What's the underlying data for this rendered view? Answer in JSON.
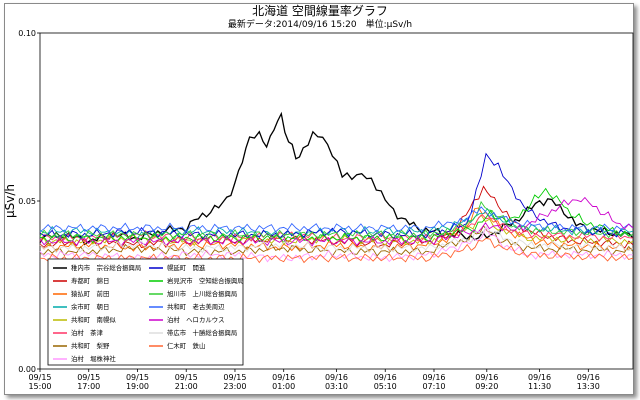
{
  "chart_data": {
    "type": "line",
    "title": "北海道 空間線量率グラフ",
    "subtitle": "最新データ:2014/09/16 15:20　単位:μSv/h",
    "ylabel": "μSv/h",
    "ylim": [
      0.0,
      0.1
    ],
    "yticks": [
      "0.00",
      "0.05",
      "0.10"
    ],
    "xticks": [
      {
        "date": "09/15",
        "time": "15:00"
      },
      {
        "date": "09/15",
        "time": "17:00"
      },
      {
        "date": "09/15",
        "time": "19:00"
      },
      {
        "date": "09/15",
        "time": "21:00"
      },
      {
        "date": "09/15",
        "time": "23:00"
      },
      {
        "date": "09/16",
        "time": "01:00"
      },
      {
        "date": "09/16",
        "time": "03:10"
      },
      {
        "date": "09/16",
        "time": "05:10"
      },
      {
        "date": "09/16",
        "time": "07:10"
      },
      {
        "date": "09/16",
        "time": "09:20"
      },
      {
        "date": "09/16",
        "time": "11:30"
      },
      {
        "date": "09/16",
        "time": "13:30"
      }
    ],
    "x_range": [
      "09/15 15:00",
      "09/16 15:20"
    ],
    "grid": false,
    "legend_position": "lower-left",
    "series": [
      {
        "name": "稚内市　宗谷総合振興局",
        "color": "#000000",
        "points": [
          [
            15,
            0.039
          ],
          [
            16,
            0.04
          ],
          [
            17,
            0.038
          ],
          [
            18,
            0.04
          ],
          [
            19,
            0.039
          ],
          [
            20,
            0.041
          ],
          [
            21,
            0.042
          ],
          [
            21.5,
            0.045
          ],
          [
            22,
            0.047
          ],
          [
            22.5,
            0.049
          ],
          [
            23,
            0.055
          ],
          [
            23.3,
            0.062
          ],
          [
            23.6,
            0.069
          ],
          [
            24,
            0.07
          ],
          [
            24.3,
            0.066
          ],
          [
            24.6,
            0.072
          ],
          [
            24.9,
            0.075
          ],
          [
            25.2,
            0.068
          ],
          [
            25.5,
            0.063
          ],
          [
            25.8,
            0.065
          ],
          [
            26.2,
            0.07
          ],
          [
            26.6,
            0.069
          ],
          [
            27,
            0.064
          ],
          [
            27.4,
            0.058
          ],
          [
            27.8,
            0.057
          ],
          [
            28.2,
            0.058
          ],
          [
            28.6,
            0.056
          ],
          [
            29,
            0.052
          ],
          [
            29.5,
            0.047
          ],
          [
            30,
            0.044
          ],
          [
            30.5,
            0.042
          ],
          [
            31,
            0.041
          ],
          [
            32,
            0.04
          ],
          [
            33,
            0.039
          ],
          [
            33.5,
            0.04
          ],
          [
            34,
            0.042
          ],
          [
            34.5,
            0.044
          ],
          [
            35,
            0.047
          ],
          [
            35.5,
            0.05
          ],
          [
            36,
            0.05
          ],
          [
            36.5,
            0.047
          ],
          [
            37,
            0.043
          ],
          [
            38,
            0.041
          ],
          [
            39,
            0.04
          ],
          [
            39.33,
            0.039
          ]
        ]
      },
      {
        "name": "寿都町　錦日",
        "color": "#cc0000",
        "points": [
          [
            15,
            0.037
          ],
          [
            17,
            0.038
          ],
          [
            19,
            0.037
          ],
          [
            21,
            0.038
          ],
          [
            23,
            0.038
          ],
          [
            25,
            0.039
          ],
          [
            27,
            0.038
          ],
          [
            29,
            0.037
          ],
          [
            31,
            0.038
          ],
          [
            32,
            0.04
          ],
          [
            32.8,
            0.05
          ],
          [
            33.2,
            0.054
          ],
          [
            33.8,
            0.049
          ],
          [
            34.5,
            0.043
          ],
          [
            35.5,
            0.04
          ],
          [
            37,
            0.038
          ],
          [
            39.33,
            0.037
          ]
        ]
      },
      {
        "name": "猿払町　前田",
        "color": "#ff6600",
        "points": [
          [
            15,
            0.036
          ],
          [
            17,
            0.037
          ],
          [
            19,
            0.036
          ],
          [
            21,
            0.037
          ],
          [
            23,
            0.037
          ],
          [
            25,
            0.036
          ],
          [
            27,
            0.037
          ],
          [
            29,
            0.036
          ],
          [
            31,
            0.037
          ],
          [
            32.2,
            0.04
          ],
          [
            33,
            0.048
          ],
          [
            33.6,
            0.044
          ],
          [
            34.5,
            0.04
          ],
          [
            36,
            0.037
          ],
          [
            39.33,
            0.036
          ]
        ]
      },
      {
        "name": "余市町　朝日",
        "color": "#00aaaa",
        "points": [
          [
            15,
            0.041
          ],
          [
            17,
            0.041
          ],
          [
            19,
            0.04
          ],
          [
            21,
            0.041
          ],
          [
            23,
            0.041
          ],
          [
            25,
            0.04
          ],
          [
            27,
            0.041
          ],
          [
            29,
            0.041
          ],
          [
            31,
            0.041
          ],
          [
            32.5,
            0.044
          ],
          [
            33.2,
            0.047
          ],
          [
            34,
            0.044
          ],
          [
            35,
            0.042
          ],
          [
            37,
            0.041
          ],
          [
            39.33,
            0.041
          ]
        ]
      },
      {
        "name": "共和町　南幌似",
        "color": "#bbbb00",
        "points": [
          [
            15,
            0.038
          ],
          [
            17,
            0.038
          ],
          [
            19,
            0.039
          ],
          [
            21,
            0.038
          ],
          [
            23,
            0.039
          ],
          [
            25,
            0.038
          ],
          [
            27,
            0.039
          ],
          [
            29,
            0.038
          ],
          [
            31,
            0.038
          ],
          [
            32.6,
            0.042
          ],
          [
            33.1,
            0.045
          ],
          [
            33.8,
            0.042
          ],
          [
            35,
            0.039
          ],
          [
            39.33,
            0.038
          ]
        ]
      },
      {
        "name": "泊村　茶津",
        "color": "#ff3366",
        "points": [
          [
            15,
            0.039
          ],
          [
            17,
            0.039
          ],
          [
            19,
            0.04
          ],
          [
            21,
            0.039
          ],
          [
            23,
            0.039
          ],
          [
            25,
            0.04
          ],
          [
            27,
            0.039
          ],
          [
            29,
            0.039
          ],
          [
            31,
            0.039
          ],
          [
            32.7,
            0.043
          ],
          [
            33.3,
            0.046
          ],
          [
            34,
            0.042
          ],
          [
            35,
            0.04
          ],
          [
            39.33,
            0.039
          ]
        ]
      },
      {
        "name": "共和町　梨野",
        "color": "#996600",
        "points": [
          [
            15,
            0.035
          ],
          [
            17,
            0.035
          ],
          [
            19,
            0.036
          ],
          [
            21,
            0.035
          ],
          [
            23,
            0.035
          ],
          [
            25,
            0.036
          ],
          [
            27,
            0.035
          ],
          [
            29,
            0.035
          ],
          [
            31,
            0.035
          ],
          [
            32.6,
            0.039
          ],
          [
            33.2,
            0.042
          ],
          [
            34,
            0.038
          ],
          [
            35,
            0.036
          ],
          [
            39.33,
            0.035
          ]
        ]
      },
      {
        "name": "泊村　堀株神社",
        "color": "#ff99ff",
        "points": [
          [
            15,
            0.034
          ],
          [
            17,
            0.034
          ],
          [
            19,
            0.033
          ],
          [
            21,
            0.034
          ],
          [
            23,
            0.034
          ],
          [
            25,
            0.033
          ],
          [
            27,
            0.034
          ],
          [
            29,
            0.033
          ],
          [
            31,
            0.034
          ],
          [
            32.8,
            0.038
          ],
          [
            33.3,
            0.041
          ],
          [
            34,
            0.037
          ],
          [
            35,
            0.034
          ],
          [
            39.33,
            0.034
          ]
        ]
      },
      {
        "name": "幌延町　開進",
        "color": "#0000cc",
        "points": [
          [
            15,
            0.04
          ],
          [
            17,
            0.04
          ],
          [
            19,
            0.041
          ],
          [
            21,
            0.04
          ],
          [
            23,
            0.04
          ],
          [
            25,
            0.04
          ],
          [
            27,
            0.041
          ],
          [
            29,
            0.04
          ],
          [
            31,
            0.04
          ],
          [
            32.5,
            0.043
          ],
          [
            32.9,
            0.053
          ],
          [
            33.3,
            0.064
          ],
          [
            33.8,
            0.06
          ],
          [
            34.2,
            0.055
          ],
          [
            34.7,
            0.05
          ],
          [
            35.2,
            0.046
          ],
          [
            36,
            0.043
          ],
          [
            37,
            0.041
          ],
          [
            39.33,
            0.04
          ]
        ]
      },
      {
        "name": "岩見沢市　空知総合振興局",
        "color": "#00cc00",
        "points": [
          [
            15,
            0.039
          ],
          [
            17,
            0.039
          ],
          [
            19,
            0.039
          ],
          [
            21,
            0.039
          ],
          [
            23,
            0.039
          ],
          [
            25,
            0.039
          ],
          [
            27,
            0.039
          ],
          [
            29,
            0.039
          ],
          [
            31,
            0.039
          ],
          [
            32.8,
            0.042
          ],
          [
            33.5,
            0.046
          ],
          [
            34.3,
            0.044
          ],
          [
            35,
            0.048
          ],
          [
            35.6,
            0.053
          ],
          [
            36.2,
            0.051
          ],
          [
            36.8,
            0.046
          ],
          [
            37.6,
            0.043
          ],
          [
            38.5,
            0.041
          ],
          [
            39.33,
            0.04
          ]
        ]
      },
      {
        "name": "旭川市　上川総合振興局",
        "color": "#33cc33",
        "points": [
          [
            15,
            0.04
          ],
          [
            17,
            0.04
          ],
          [
            19,
            0.04
          ],
          [
            21,
            0.04
          ],
          [
            23,
            0.04
          ],
          [
            25,
            0.04
          ],
          [
            27,
            0.04
          ],
          [
            29,
            0.04
          ],
          [
            31,
            0.04
          ],
          [
            32.6,
            0.043
          ],
          [
            33.1,
            0.049
          ],
          [
            33.7,
            0.046
          ],
          [
            34.5,
            0.042
          ],
          [
            36,
            0.041
          ],
          [
            39.33,
            0.04
          ]
        ]
      },
      {
        "name": "共和町　老古美周辺",
        "color": "#3366ff",
        "points": [
          [
            15,
            0.042
          ],
          [
            17,
            0.042
          ],
          [
            19,
            0.042
          ],
          [
            21,
            0.042
          ],
          [
            23,
            0.042
          ],
          [
            25,
            0.042
          ],
          [
            27,
            0.042
          ],
          [
            29,
            0.042
          ],
          [
            31,
            0.042
          ],
          [
            32.6,
            0.045
          ],
          [
            33.1,
            0.048
          ],
          [
            33.8,
            0.045
          ],
          [
            35,
            0.043
          ],
          [
            37,
            0.042
          ],
          [
            39.33,
            0.042
          ]
        ]
      },
      {
        "name": "泊村　ヘロカルウス",
        "color": "#cc00cc",
        "points": [
          [
            15,
            0.038
          ],
          [
            17,
            0.038
          ],
          [
            19,
            0.038
          ],
          [
            21,
            0.038
          ],
          [
            23,
            0.038
          ],
          [
            25,
            0.038
          ],
          [
            27,
            0.038
          ],
          [
            29,
            0.038
          ],
          [
            31,
            0.038
          ],
          [
            32.8,
            0.041
          ],
          [
            33.6,
            0.043
          ],
          [
            34.5,
            0.041
          ],
          [
            35.5,
            0.045
          ],
          [
            36.5,
            0.049
          ],
          [
            37.2,
            0.051
          ],
          [
            38,
            0.047
          ],
          [
            38.8,
            0.043
          ],
          [
            39.33,
            0.042
          ]
        ]
      },
      {
        "name": "帯広市　十勝総合振興局",
        "color": "#dddddd",
        "points": [
          [
            15,
            0.036
          ],
          [
            17,
            0.036
          ],
          [
            19,
            0.037
          ],
          [
            21,
            0.036
          ],
          [
            23,
            0.036
          ],
          [
            25,
            0.037
          ],
          [
            27,
            0.036
          ],
          [
            29,
            0.036
          ],
          [
            31,
            0.036
          ],
          [
            32.7,
            0.039
          ],
          [
            33.3,
            0.042
          ],
          [
            34,
            0.039
          ],
          [
            35,
            0.037
          ],
          [
            39.33,
            0.036
          ]
        ]
      },
      {
        "name": "仁木町　鉄山",
        "color": "#ff6633",
        "points": [
          [
            15,
            0.033
          ],
          [
            17,
            0.033
          ],
          [
            19,
            0.033
          ],
          [
            21,
            0.033
          ],
          [
            23,
            0.033
          ],
          [
            25,
            0.033
          ],
          [
            27,
            0.033
          ],
          [
            29,
            0.033
          ],
          [
            31,
            0.033
          ],
          [
            32.7,
            0.036
          ],
          [
            33.3,
            0.039
          ],
          [
            34,
            0.036
          ],
          [
            35,
            0.034
          ],
          [
            39.33,
            0.033
          ]
        ]
      }
    ]
  }
}
